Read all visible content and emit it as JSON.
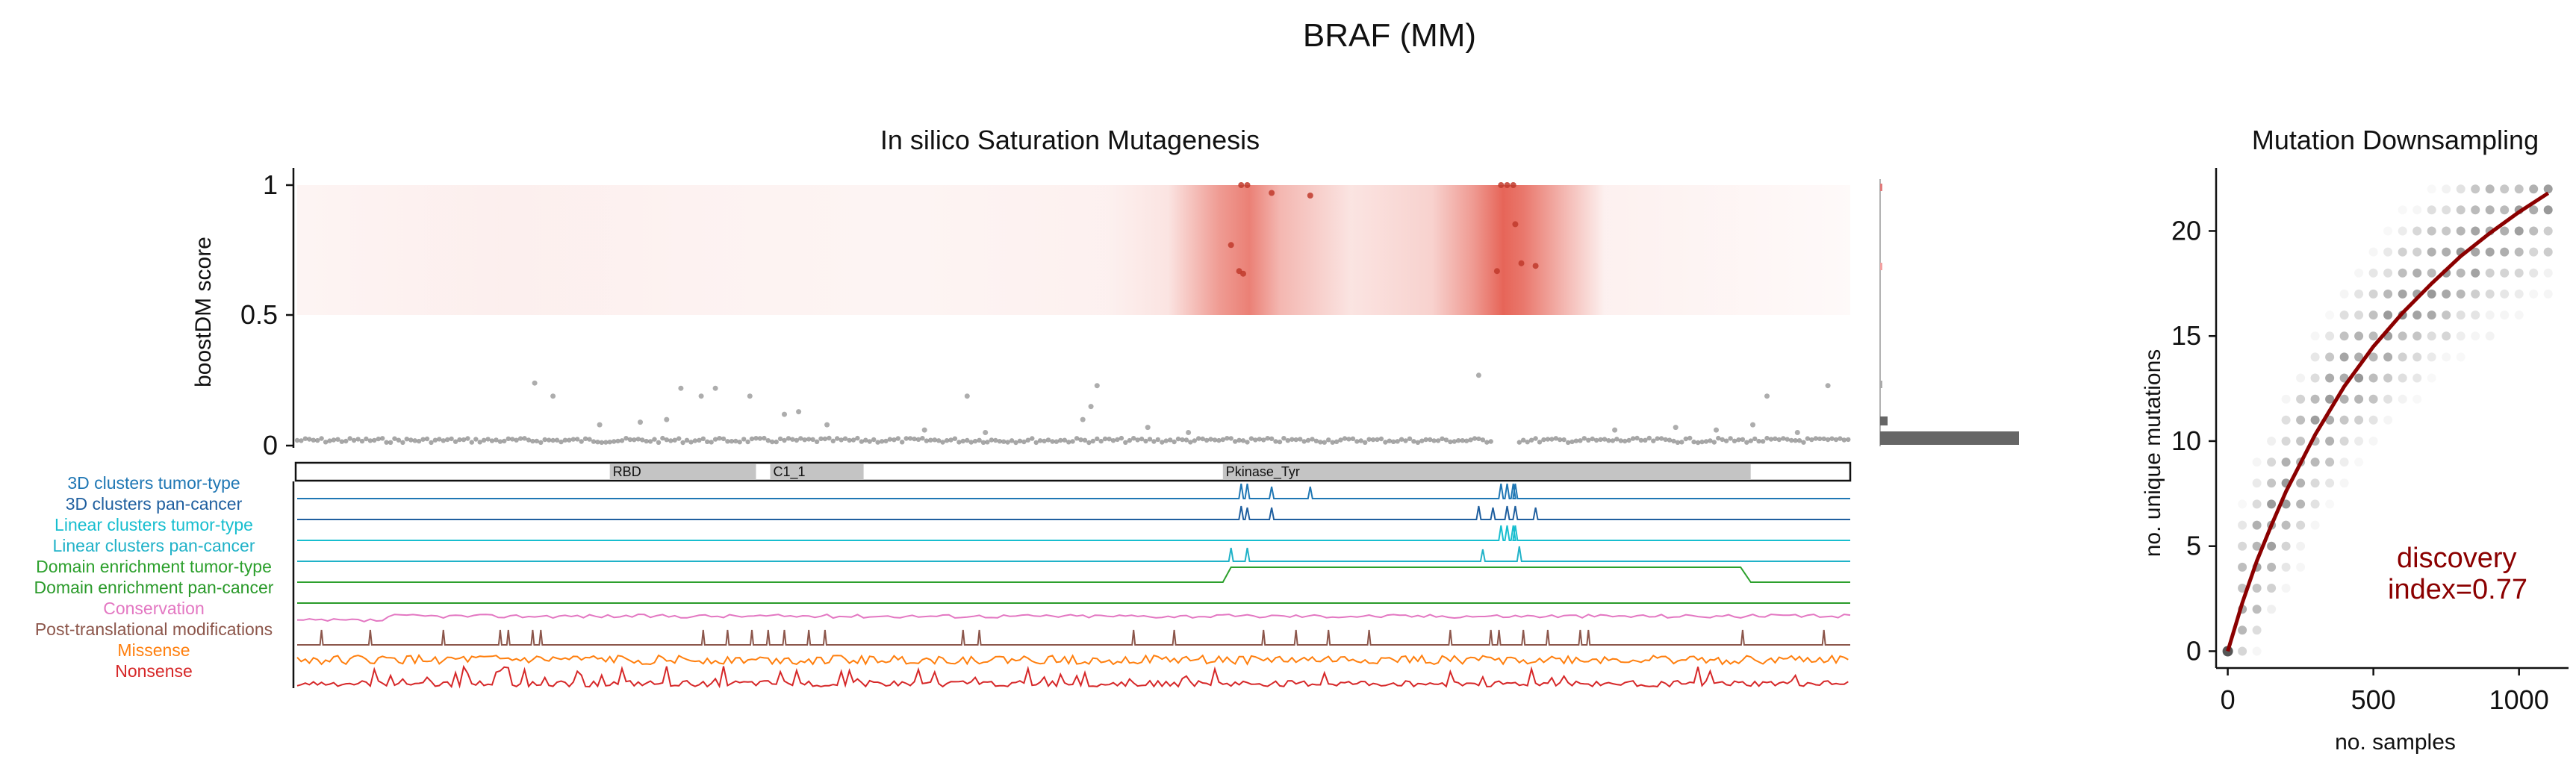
{
  "figure": {
    "title": "BRAF (MM)"
  },
  "panels": {
    "saturation": {
      "title": "In silico Saturation Mutagenesis",
      "ylabel": "boostDM score",
      "yticks": [
        "1",
        "0.5",
        "0"
      ]
    },
    "downsampling": {
      "title": "Mutation Downsampling",
      "xlabel": "no. samples",
      "ylabel": "no. unique mutations",
      "xticks": [
        "0",
        "500",
        "1000"
      ],
      "yticks": [
        "0",
        "5",
        "10",
        "15",
        "20"
      ],
      "annotation_line1": "discovery",
      "annotation_line2": "index=0.77"
    }
  },
  "domains": [
    {
      "name": "RBD",
      "start": 155,
      "end": 227
    },
    {
      "name": "C1_1",
      "start": 234,
      "end": 280
    },
    {
      "name": "Pkinase_Tyr",
      "start": 457,
      "end": 717
    }
  ],
  "tracks": [
    {
      "label": "3D clusters tumor-type",
      "color": "#1f77b4"
    },
    {
      "label": "3D clusters pan-cancer",
      "color": "#1f5f9f"
    },
    {
      "label": "Linear clusters tumor-type",
      "color": "#17becf"
    },
    {
      "label": "Linear clusters pan-cancer",
      "color": "#20b2c8"
    },
    {
      "label": "Domain enrichment tumor-type",
      "color": "#2ca02c"
    },
    {
      "label": "Domain enrichment pan-cancer",
      "color": "#2a9a2a"
    },
    {
      "label": "Conservation",
      "color": "#e377c2"
    },
    {
      "label": "Post-translational modifications",
      "color": "#8c564b"
    },
    {
      "label": "Missense",
      "color": "#ff7f0e"
    },
    {
      "label": "Nonsense",
      "color": "#d62728"
    }
  ],
  "colors": {
    "heat": "#e24a3b",
    "driver_points": "#c0392b",
    "passenger_points": "#8a8a8a",
    "fit_line": "#8b0000",
    "annotation": "#8b0000"
  },
  "chart_data": [
    {
      "type": "scatter",
      "name": "saturation-mutagenesis",
      "x_range": [
        1,
        766
      ],
      "ylim": [
        0,
        1
      ],
      "heat_profile": [
        {
          "pos": 1,
          "v": 0.06
        },
        {
          "pos": 100,
          "v": 0.09
        },
        {
          "pos": 200,
          "v": 0.07
        },
        {
          "pos": 300,
          "v": 0.06
        },
        {
          "pos": 400,
          "v": 0.08
        },
        {
          "pos": 430,
          "v": 0.15
        },
        {
          "pos": 455,
          "v": 0.55
        },
        {
          "pos": 470,
          "v": 0.7
        },
        {
          "pos": 485,
          "v": 0.4
        },
        {
          "pos": 520,
          "v": 0.15
        },
        {
          "pos": 560,
          "v": 0.25
        },
        {
          "pos": 580,
          "v": 0.55
        },
        {
          "pos": 595,
          "v": 0.85
        },
        {
          "pos": 605,
          "v": 0.75
        },
        {
          "pos": 625,
          "v": 0.4
        },
        {
          "pos": 645,
          "v": 0.08
        },
        {
          "pos": 766,
          "v": 0.03
        }
      ],
      "driver_points": [
        [
          466,
          1.0
        ],
        [
          469,
          1.0
        ],
        [
          481,
          0.97
        ],
        [
          500,
          0.96
        ],
        [
          461,
          0.77
        ],
        [
          465,
          0.67
        ],
        [
          467,
          0.66
        ],
        [
          594,
          1.0
        ],
        [
          597,
          1.0
        ],
        [
          600,
          1.0
        ],
        [
          601,
          0.85
        ],
        [
          592,
          0.67
        ],
        [
          604,
          0.7
        ],
        [
          611,
          0.69
        ]
      ],
      "passenger_points": [
        [
          118,
          0.24
        ],
        [
          127,
          0.19
        ],
        [
          190,
          0.22
        ],
        [
          200,
          0.19
        ],
        [
          207,
          0.22
        ],
        [
          224,
          0.19
        ],
        [
          241,
          0.12
        ],
        [
          248,
          0.13
        ],
        [
          331,
          0.19
        ],
        [
          388,
          0.1
        ],
        [
          392,
          0.15
        ],
        [
          395,
          0.23
        ],
        [
          583,
          0.27
        ],
        [
          725,
          0.19
        ],
        [
          755,
          0.23
        ],
        [
          150,
          0.08
        ],
        [
          170,
          0.09
        ],
        [
          183,
          0.1
        ],
        [
          262,
          0.08
        ],
        [
          310,
          0.06
        ],
        [
          340,
          0.05
        ],
        [
          420,
          0.07
        ],
        [
          440,
          0.05
        ],
        [
          650,
          0.06
        ],
        [
          680,
          0.07
        ],
        [
          700,
          0.06
        ],
        [
          718,
          0.08
        ],
        [
          740,
          0.05
        ]
      ],
      "passenger_band": 0.02,
      "gaps": [
        [
          470,
          470
        ],
        [
          590,
          602
        ]
      ]
    },
    {
      "type": "scatter",
      "name": "mutation-downsampling",
      "xlabel": "no. samples",
      "ylabel": "no. unique mutations",
      "xlim": [
        -40,
        1170
      ],
      "ylim": [
        -0.8,
        23
      ],
      "fit": [
        [
          0,
          0
        ],
        [
          50,
          2.3
        ],
        [
          100,
          4.3
        ],
        [
          150,
          6.0
        ],
        [
          200,
          7.6
        ],
        [
          300,
          10.3
        ],
        [
          400,
          12.6
        ],
        [
          500,
          14.5
        ],
        [
          600,
          16.1
        ],
        [
          700,
          17.5
        ],
        [
          800,
          18.8
        ],
        [
          900,
          19.9
        ],
        [
          1000,
          20.9
        ],
        [
          1100,
          21.8
        ]
      ],
      "annotation": "discovery index=0.77"
    }
  ]
}
